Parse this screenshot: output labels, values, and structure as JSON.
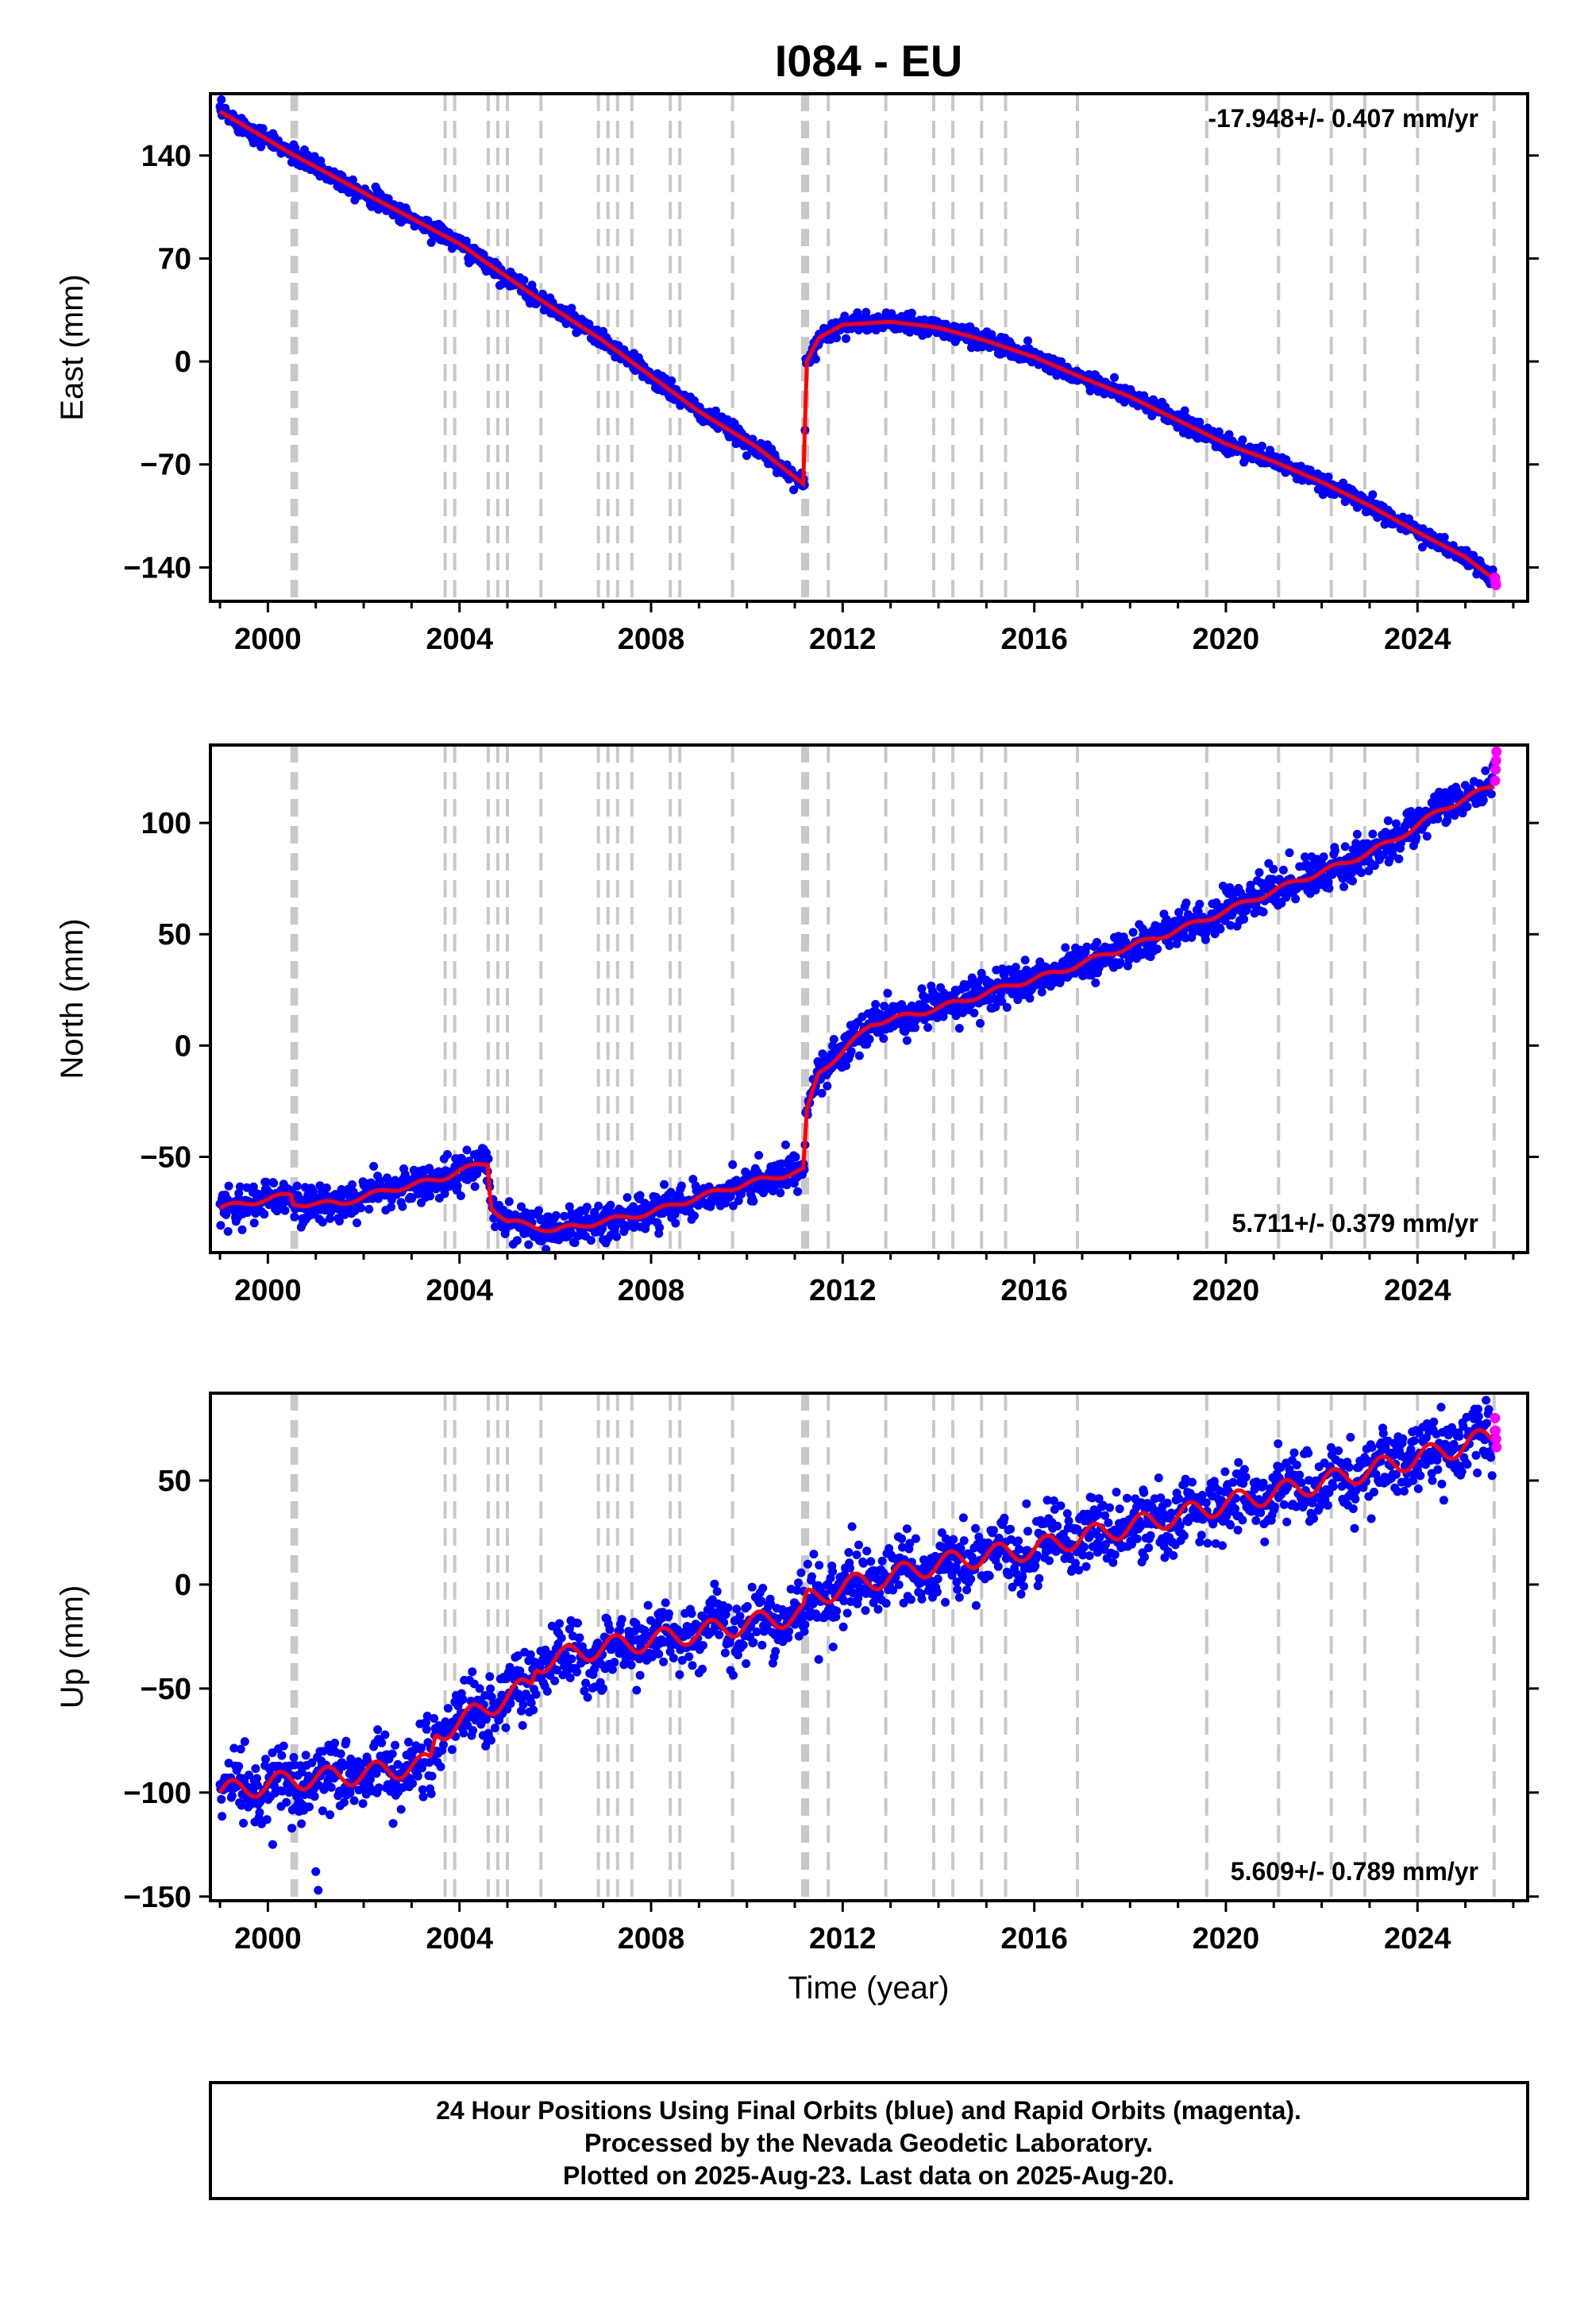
{
  "chart_data": [
    {
      "type": "scatter",
      "ylabel": "East (mm)",
      "xlabel": "",
      "xlim": [
        1998.8,
        2026.3
      ],
      "ylim": [
        -163,
        182
      ],
      "xticks": [
        2000,
        2004,
        2008,
        2012,
        2016,
        2020,
        2024
      ],
      "yticks": [
        -140,
        -70,
        0,
        70,
        140
      ],
      "ytick_labels": [
        "−140",
        "−70",
        "0",
        "70",
        "140"
      ],
      "rate": "-17.948+/- 0.407 mm/yr",
      "rate_position": "top-right",
      "series": [
        {
          "role": "final-orbits",
          "color": "#0000ff",
          "trend": [
            [
              1999.0,
              170
            ],
            [
              2000.5,
              141
            ],
            [
              2002.5,
              106
            ],
            [
              2004.0,
              80
            ],
            [
              2005.5,
              46
            ],
            [
              2007.0,
              14
            ],
            [
              2009.0,
              -34
            ],
            [
              2010.2,
              -58
            ],
            [
              2011.21,
              -84
            ],
            [
              2011.22,
              -2
            ],
            [
              2011.5,
              16
            ],
            [
              2012.0,
              25
            ],
            [
              2013.0,
              27
            ],
            [
              2014.0,
              23
            ],
            [
              2015.0,
              14
            ],
            [
              2016.0,
              3
            ],
            [
              2017.0,
              -11
            ],
            [
              2018.0,
              -24
            ],
            [
              2019.0,
              -40
            ],
            [
              2020.0,
              -56
            ],
            [
              2021.0,
              -68
            ],
            [
              2022.0,
              -82
            ],
            [
              2023.0,
              -98
            ],
            [
              2024.0,
              -116
            ],
            [
              2025.0,
              -133
            ],
            [
              2025.6,
              -148
            ]
          ],
          "noise": 3
        },
        {
          "role": "rapid-orbits",
          "color": "#ff00ff",
          "points": [
            [
              2025.62,
              -147
            ],
            [
              2025.63,
              -150
            ],
            [
              2025.64,
              -152
            ]
          ]
        },
        {
          "role": "model",
          "color": "#ff0000"
        }
      ]
    },
    {
      "type": "scatter",
      "ylabel": "North (mm)",
      "xlabel": "",
      "xlim": [
        1998.8,
        2026.3
      ],
      "ylim": [
        -93,
        135
      ],
      "xticks": [
        2000,
        2004,
        2008,
        2012,
        2016,
        2020,
        2024
      ],
      "yticks": [
        -50,
        0,
        50,
        100
      ],
      "ytick_labels": [
        "−50",
        "0",
        "50",
        "100"
      ],
      "rate": "5.711+/- 0.379 mm/yr",
      "rate_position": "bottom-right",
      "series": [
        {
          "role": "final-orbits",
          "color": "#0000ff",
          "trend": [
            [
              1999.0,
              -73
            ],
            [
              2000.5,
              -67
            ],
            [
              2000.52,
              -71
            ],
            [
              2001.5,
              -71
            ],
            [
              2002.5,
              -65
            ],
            [
              2003.6,
              -60
            ],
            [
              2004.0,
              -56
            ],
            [
              2004.6,
              -53
            ],
            [
              2004.65,
              -72
            ],
            [
              2005.0,
              -79
            ],
            [
              2006.0,
              -83
            ],
            [
              2007.0,
              -79
            ],
            [
              2008.0,
              -75
            ],
            [
              2009.0,
              -68
            ],
            [
              2010.0,
              -62
            ],
            [
              2011.21,
              -56
            ],
            [
              2011.22,
              -32
            ],
            [
              2011.5,
              -12
            ],
            [
              2012.0,
              -3
            ],
            [
              2012.6,
              10
            ],
            [
              2013.5,
              14
            ],
            [
              2014.5,
              20
            ],
            [
              2015.5,
              27
            ],
            [
              2016.5,
              33
            ],
            [
              2017.5,
              41
            ],
            [
              2018.5,
              48
            ],
            [
              2019.5,
              56
            ],
            [
              2020.5,
              65
            ],
            [
              2021.5,
              74
            ],
            [
              2022.5,
              82
            ],
            [
              2023.5,
              92
            ],
            [
              2024.5,
              106
            ],
            [
              2025.6,
              117
            ]
          ],
          "noise": 4
        },
        {
          "role": "rapid-orbits",
          "color": "#ff00ff",
          "points": [
            [
              2025.62,
              119
            ],
            [
              2025.63,
              124
            ],
            [
              2025.64,
              128
            ],
            [
              2025.65,
              132
            ]
          ]
        },
        {
          "role": "model",
          "color": "#ff0000"
        }
      ]
    },
    {
      "type": "scatter",
      "ylabel": "Up (mm)",
      "xlabel": "Time (year)",
      "xlim": [
        1998.8,
        2026.3
      ],
      "ylim": [
        -152,
        92
      ],
      "xticks": [
        2000,
        2004,
        2008,
        2012,
        2016,
        2020,
        2024
      ],
      "yticks": [
        -150,
        -100,
        -50,
        0,
        50
      ],
      "ytick_labels": [
        "−150",
        "−100",
        "−50",
        "0",
        "50"
      ],
      "rate": "5.609+/- 0.789 mm/yr",
      "rate_position": "bottom-right",
      "series": [
        {
          "role": "final-orbits",
          "color": "#0000ff",
          "trend": [
            [
              1999.0,
              -100
            ],
            [
              2000.5,
              -94
            ],
            [
              2002.0,
              -91
            ],
            [
              2003.4,
              -86
            ],
            [
              2003.5,
              -72
            ],
            [
              2004.5,
              -60
            ],
            [
              2005.5,
              -48
            ],
            [
              2005.6,
              -38
            ],
            [
              2007.0,
              -30
            ],
            [
              2008.0,
              -27
            ],
            [
              2009.0,
              -23
            ],
            [
              2010.0,
              -19
            ],
            [
              2011.21,
              -14
            ],
            [
              2011.22,
              -8
            ],
            [
              2012.0,
              -1
            ],
            [
              2013.0,
              4
            ],
            [
              2014.0,
              10
            ],
            [
              2015.0,
              14
            ],
            [
              2016.0,
              17
            ],
            [
              2017.0,
              23
            ],
            [
              2018.0,
              28
            ],
            [
              2019.0,
              33
            ],
            [
              2020.0,
              39
            ],
            [
              2021.0,
              44
            ],
            [
              2022.0,
              49
            ],
            [
              2023.0,
              55
            ],
            [
              2024.0,
              61
            ],
            [
              2025.0,
              67
            ],
            [
              2025.6,
              72
            ]
          ],
          "noise": 8
        },
        {
          "role": "rapid-orbits",
          "color": "#ff00ff",
          "points": [
            [
              2025.62,
              80
            ],
            [
              2025.63,
              74
            ],
            [
              2025.64,
              70
            ],
            [
              2025.65,
              66
            ]
          ]
        },
        {
          "role": "model",
          "color": "#ff0000"
        }
      ]
    }
  ],
  "title": "I084 - EU",
  "event_lines": [
    {
      "year": 2000.52,
      "style": "heavy"
    },
    {
      "year": 2000.58,
      "style": "heavy"
    },
    {
      "year": 2003.7,
      "style": "light"
    },
    {
      "year": 2003.9,
      "style": "light"
    },
    {
      "year": 2004.6,
      "style": "light"
    },
    {
      "year": 2004.8,
      "style": "light"
    },
    {
      "year": 2005.0,
      "style": "light"
    },
    {
      "year": 2005.7,
      "style": "light"
    },
    {
      "year": 2006.9,
      "style": "light"
    },
    {
      "year": 2007.1,
      "style": "light"
    },
    {
      "year": 2007.3,
      "style": "light"
    },
    {
      "year": 2007.6,
      "style": "light"
    },
    {
      "year": 2008.4,
      "style": "light"
    },
    {
      "year": 2008.6,
      "style": "light"
    },
    {
      "year": 2009.7,
      "style": "light"
    },
    {
      "year": 2011.18,
      "style": "heavy"
    },
    {
      "year": 2011.25,
      "style": "heavy"
    },
    {
      "year": 2011.7,
      "style": "light"
    },
    {
      "year": 2012.9,
      "style": "light"
    },
    {
      "year": 2013.9,
      "style": "light"
    },
    {
      "year": 2014.3,
      "style": "light"
    },
    {
      "year": 2014.9,
      "style": "light"
    },
    {
      "year": 2015.4,
      "style": "light"
    },
    {
      "year": 2016.9,
      "style": "light"
    },
    {
      "year": 2019.6,
      "style": "light"
    },
    {
      "year": 2021.1,
      "style": "light"
    },
    {
      "year": 2022.2,
      "style": "light"
    },
    {
      "year": 2022.9,
      "style": "light"
    },
    {
      "year": 2024.0,
      "style": "light"
    },
    {
      "year": 2025.6,
      "style": "light"
    }
  ],
  "footer": {
    "line1": "24 Hour Positions Using Final Orbits (blue) and Rapid Orbits (magenta).",
    "line2": "Processed by the Nevada Geodetic Laboratory.",
    "line3": "Plotted on 2025-Aug-23. Last data on 2025-Aug-20."
  }
}
